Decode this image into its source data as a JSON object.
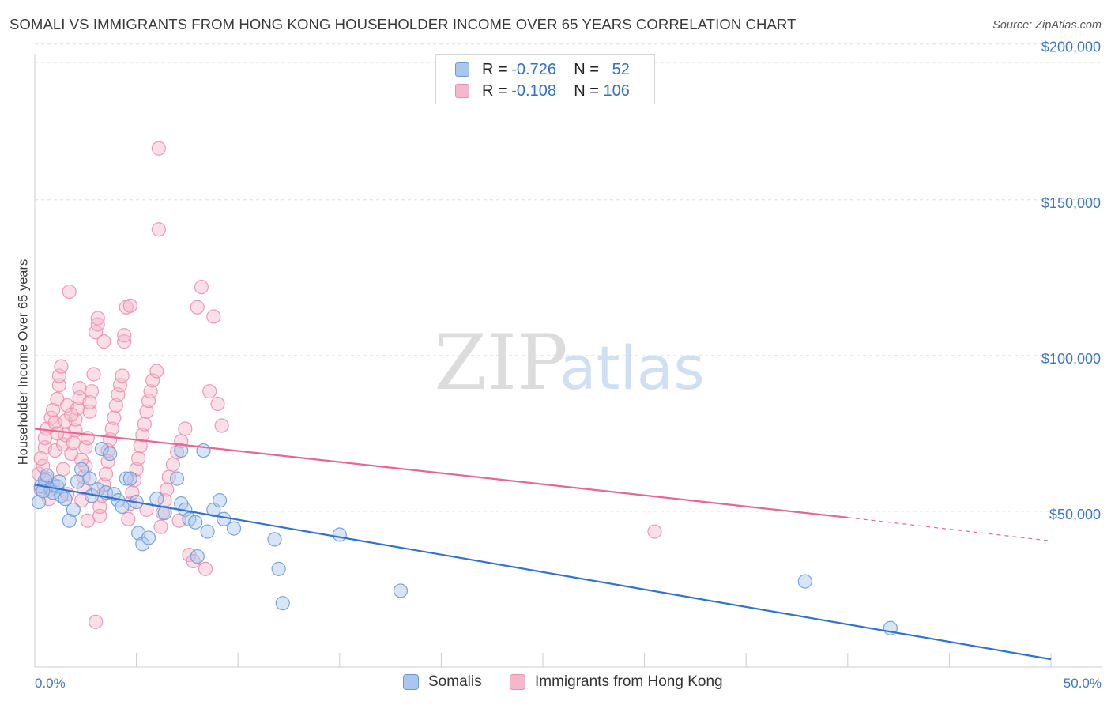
{
  "title": "SOMALI VS IMMIGRANTS FROM HONG KONG HOUSEHOLDER INCOME OVER 65 YEARS CORRELATION CHART",
  "source": "Source: ZipAtlas.com",
  "watermark": {
    "zip": "ZIP",
    "atlas": "atlas"
  },
  "colors": {
    "somali_fill": "#a9c6ee",
    "somali_stroke": "#6c9bdc",
    "somali_line": "#2f72d6",
    "hk_fill": "#f5b7ca",
    "hk_stroke": "#ec8fae",
    "hk_line": "#e8668f",
    "axis_text": "#3f78c9",
    "grid": "#dddddd"
  },
  "legend": {
    "rows": [
      {
        "r_label": "R = ",
        "r_value": "-0.726",
        "n_label": "N = ",
        "n_value": "52"
      },
      {
        "r_label": "R = ",
        "r_value": "-0.108",
        "n_label": "N = ",
        "n_value": "106"
      }
    ]
  },
  "bottom_legend": {
    "series1": "Somalis",
    "series2": "Immigrants from Hong Kong"
  },
  "chart_data": {
    "type": "scatter",
    "title": "SOMALI VS IMMIGRANTS FROM HONG KONG HOUSEHOLDER INCOME OVER 65 YEARS CORRELATION CHART",
    "xlabel": "",
    "ylabel": "Householder Income Over 65 years",
    "xlim": [
      0,
      50
    ],
    "ylim": [
      0,
      205000
    ],
    "x_tick_labels": [
      "0.0%",
      "50.0%"
    ],
    "y_ticks": [
      50000,
      100000,
      150000,
      200000
    ],
    "y_tick_labels": [
      "$50,000",
      "$100,000",
      "$150,000",
      "$200,000"
    ],
    "series": [
      {
        "name": "Somalis",
        "r": -0.726,
        "n": 52,
        "trend": {
          "x0": 0,
          "y0": 58500,
          "x1": 50,
          "y1": 2500,
          "dash_from": 50
        },
        "points": [
          [
            0.3,
            58000
          ],
          [
            0.5,
            60000
          ],
          [
            0.6,
            61500
          ],
          [
            0.8,
            57000
          ],
          [
            0.9,
            56000
          ],
          [
            1.1,
            58000
          ],
          [
            1.3,
            55000
          ],
          [
            1.5,
            54000
          ],
          [
            1.7,
            47000
          ],
          [
            1.9,
            50500
          ],
          [
            2.1,
            59500
          ],
          [
            2.3,
            63500
          ],
          [
            2.7,
            60500
          ],
          [
            2.8,
            55000
          ],
          [
            3.1,
            57000
          ],
          [
            3.3,
            70000
          ],
          [
            3.5,
            56000
          ],
          [
            3.7,
            68500
          ],
          [
            3.9,
            55500
          ],
          [
            4.1,
            53500
          ],
          [
            4.3,
            51500
          ],
          [
            4.5,
            60500
          ],
          [
            4.7,
            60500
          ],
          [
            5.0,
            53000
          ],
          [
            5.1,
            43000
          ],
          [
            5.3,
            39500
          ],
          [
            5.6,
            41500
          ],
          [
            6.0,
            54000
          ],
          [
            6.4,
            49500
          ],
          [
            7.0,
            60500
          ],
          [
            7.2,
            52500
          ],
          [
            7.2,
            69500
          ],
          [
            7.4,
            50500
          ],
          [
            7.6,
            47500
          ],
          [
            7.9,
            46500
          ],
          [
            8.0,
            35500
          ],
          [
            8.3,
            69500
          ],
          [
            8.5,
            43500
          ],
          [
            8.8,
            50500
          ],
          [
            9.1,
            53500
          ],
          [
            9.3,
            47500
          ],
          [
            9.8,
            44500
          ],
          [
            11.8,
            41000
          ],
          [
            12.0,
            31500
          ],
          [
            12.2,
            20500
          ],
          [
            15.0,
            42500
          ],
          [
            18.0,
            24500
          ],
          [
            37.9,
            27500
          ],
          [
            42.1,
            12500
          ],
          [
            0.2,
            53000
          ],
          [
            0.4,
            56500
          ],
          [
            1.2,
            59500
          ]
        ]
      },
      {
        "name": "Immigrants from Hong Kong",
        "r": -0.108,
        "n": 106,
        "trend": {
          "x0": 0,
          "y0": 76500,
          "x1": 40,
          "y1": 48000,
          "dash_from": 40,
          "dash_to_x": 50,
          "dash_to_y": 40500
        },
        "points": [
          [
            0.2,
            62000
          ],
          [
            0.3,
            57000
          ],
          [
            0.4,
            64500
          ],
          [
            0.5,
            70500
          ],
          [
            0.5,
            73500
          ],
          [
            0.6,
            76500
          ],
          [
            0.7,
            54000
          ],
          [
            0.8,
            80000
          ],
          [
            0.9,
            82500
          ],
          [
            1.0,
            78500
          ],
          [
            1.0,
            69500
          ],
          [
            1.1,
            86000
          ],
          [
            1.2,
            90500
          ],
          [
            1.2,
            93500
          ],
          [
            1.3,
            96500
          ],
          [
            1.4,
            71500
          ],
          [
            1.5,
            74500
          ],
          [
            1.5,
            79000
          ],
          [
            1.6,
            84000
          ],
          [
            1.7,
            120500
          ],
          [
            1.8,
            68500
          ],
          [
            1.9,
            72000
          ],
          [
            2.0,
            76000
          ],
          [
            2.0,
            79500
          ],
          [
            2.1,
            83000
          ],
          [
            2.2,
            86500
          ],
          [
            2.2,
            89500
          ],
          [
            2.3,
            53500
          ],
          [
            2.4,
            57500
          ],
          [
            2.4,
            61000
          ],
          [
            2.5,
            64500
          ],
          [
            2.5,
            70500
          ],
          [
            2.6,
            73500
          ],
          [
            2.7,
            82000
          ],
          [
            2.7,
            85000
          ],
          [
            2.8,
            88500
          ],
          [
            2.9,
            94000
          ],
          [
            3.0,
            107500
          ],
          [
            3.1,
            110000
          ],
          [
            3.1,
            112000
          ],
          [
            3.2,
            48500
          ],
          [
            3.2,
            51500
          ],
          [
            3.3,
            55000
          ],
          [
            3.4,
            58500
          ],
          [
            3.5,
            62000
          ],
          [
            3.6,
            66000
          ],
          [
            3.6,
            69500
          ],
          [
            3.7,
            73000
          ],
          [
            3.8,
            76500
          ],
          [
            3.9,
            80000
          ],
          [
            4.0,
            84000
          ],
          [
            4.1,
            87500
          ],
          [
            4.2,
            90500
          ],
          [
            4.3,
            93500
          ],
          [
            4.4,
            104500
          ],
          [
            4.4,
            106500
          ],
          [
            4.5,
            115500
          ],
          [
            4.6,
            47500
          ],
          [
            4.7,
            52500
          ],
          [
            4.8,
            56000
          ],
          [
            4.9,
            60000
          ],
          [
            5.0,
            63500
          ],
          [
            5.1,
            67000
          ],
          [
            5.2,
            71000
          ],
          [
            5.3,
            74500
          ],
          [
            5.4,
            78000
          ],
          [
            5.5,
            82000
          ],
          [
            5.6,
            85500
          ],
          [
            5.7,
            88500
          ],
          [
            5.8,
            92000
          ],
          [
            6.0,
            95000
          ],
          [
            6.1,
            140500
          ],
          [
            6.1,
            166500
          ],
          [
            6.2,
            45000
          ],
          [
            6.3,
            49500
          ],
          [
            6.4,
            53500
          ],
          [
            6.5,
            57000
          ],
          [
            6.6,
            61000
          ],
          [
            6.8,
            65000
          ],
          [
            7.0,
            69000
          ],
          [
            7.2,
            72500
          ],
          [
            7.4,
            76500
          ],
          [
            7.6,
            36000
          ],
          [
            7.8,
            34000
          ],
          [
            8.0,
            115500
          ],
          [
            8.2,
            122000
          ],
          [
            8.4,
            31500
          ],
          [
            8.6,
            88500
          ],
          [
            8.8,
            112500
          ],
          [
            9.0,
            84500
          ],
          [
            9.2,
            77500
          ],
          [
            0.3,
            67000
          ],
          [
            0.6,
            60500
          ],
          [
            0.9,
            58500
          ],
          [
            1.4,
            63500
          ],
          [
            1.6,
            55500
          ],
          [
            2.6,
            47000
          ],
          [
            3.0,
            14500
          ],
          [
            3.4,
            104500
          ],
          [
            4.7,
            116000
          ],
          [
            5.5,
            50500
          ],
          [
            7.1,
            47000
          ],
          [
            30.5,
            43500
          ],
          [
            1.1,
            75000
          ],
          [
            1.8,
            81000
          ],
          [
            2.3,
            66500
          ]
        ]
      }
    ]
  }
}
